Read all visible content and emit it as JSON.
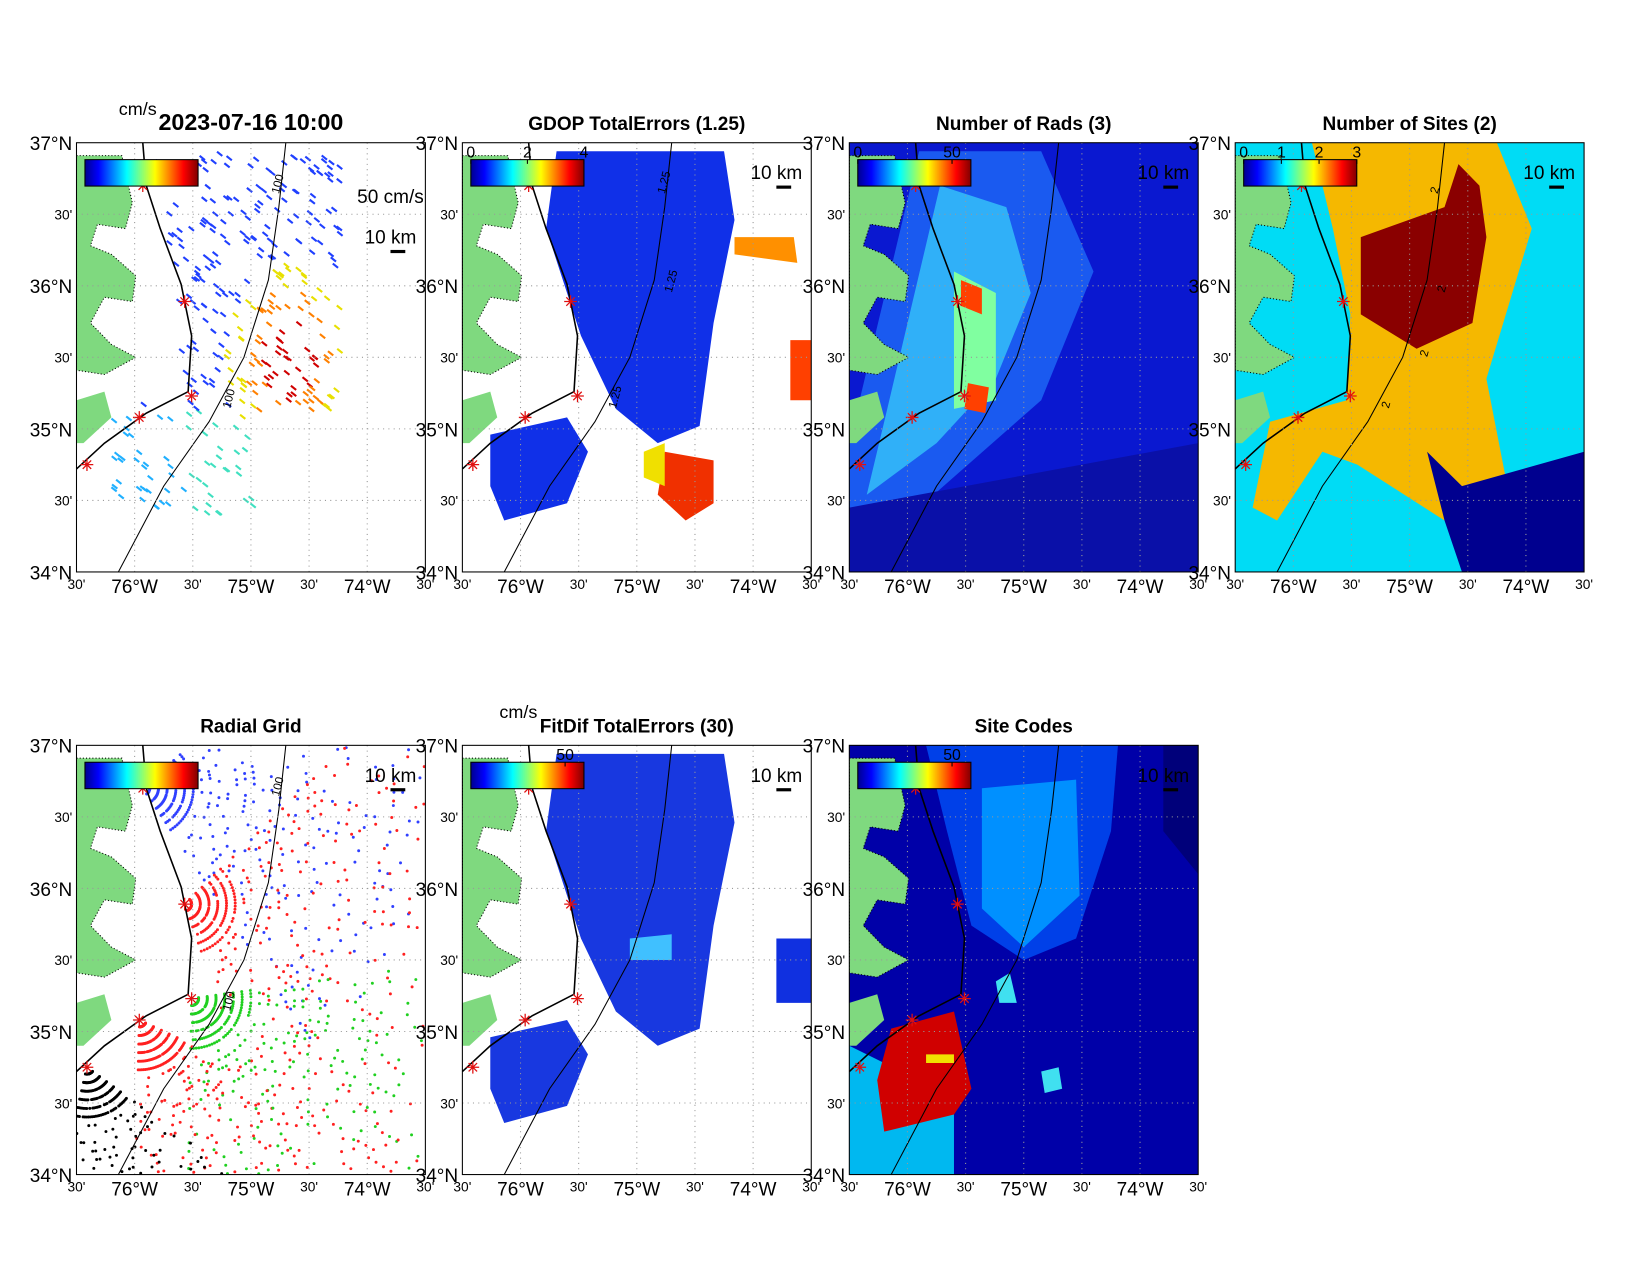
{
  "panels": [
    {
      "title": "2023-07-16 10:00",
      "colorbar_unit": "cm/s",
      "scale_labels": [
        "50 cm/s",
        "10 km"
      ],
      "contour_labels": [
        "100",
        "100"
      ]
    },
    {
      "title": "GDOP TotalErrors (1.25)",
      "clim": [
        0,
        4
      ],
      "colorbar_ticks": [
        0,
        2,
        4
      ],
      "scale_labels": [
        "10 km"
      ],
      "contour_labels": [
        "1.25",
        "1.25",
        "1.25"
      ]
    },
    {
      "title": "Number of Rads (3)",
      "clim": [
        0,
        60
      ],
      "colorbar_ticks": [
        0,
        50
      ],
      "scale_labels": [
        "10 km"
      ]
    },
    {
      "title": "Number of Sites (2)",
      "clim": [
        0,
        3
      ],
      "colorbar_ticks": [
        0,
        1,
        2,
        3
      ],
      "scale_labels": [
        "10 km"
      ],
      "contour_labels": [
        "2",
        "2",
        "2",
        "2"
      ]
    },
    {
      "title": "Radial Grid",
      "scale_labels": [
        "10 km"
      ],
      "contour_labels": [
        "100",
        "100"
      ]
    },
    {
      "title": "FitDif TotalErrors (30)",
      "colorbar_unit": "cm/s",
      "clim": [
        0,
        60
      ],
      "colorbar_ticks": [
        50
      ],
      "scale_labels": [
        "10 km"
      ]
    },
    {
      "title": "Site Codes",
      "clim": [
        0,
        60
      ],
      "colorbar_ticks": [
        50
      ],
      "scale_labels": [
        "10 km"
      ]
    }
  ],
  "lat_labels": [
    "37°N",
    "30'",
    "36°N",
    "30'",
    "35°N",
    "30'",
    "34°N"
  ],
  "lon_labels": [
    "30'",
    "76°W",
    "30'",
    "75°W",
    "30'",
    "74°W",
    "30'"
  ]
}
